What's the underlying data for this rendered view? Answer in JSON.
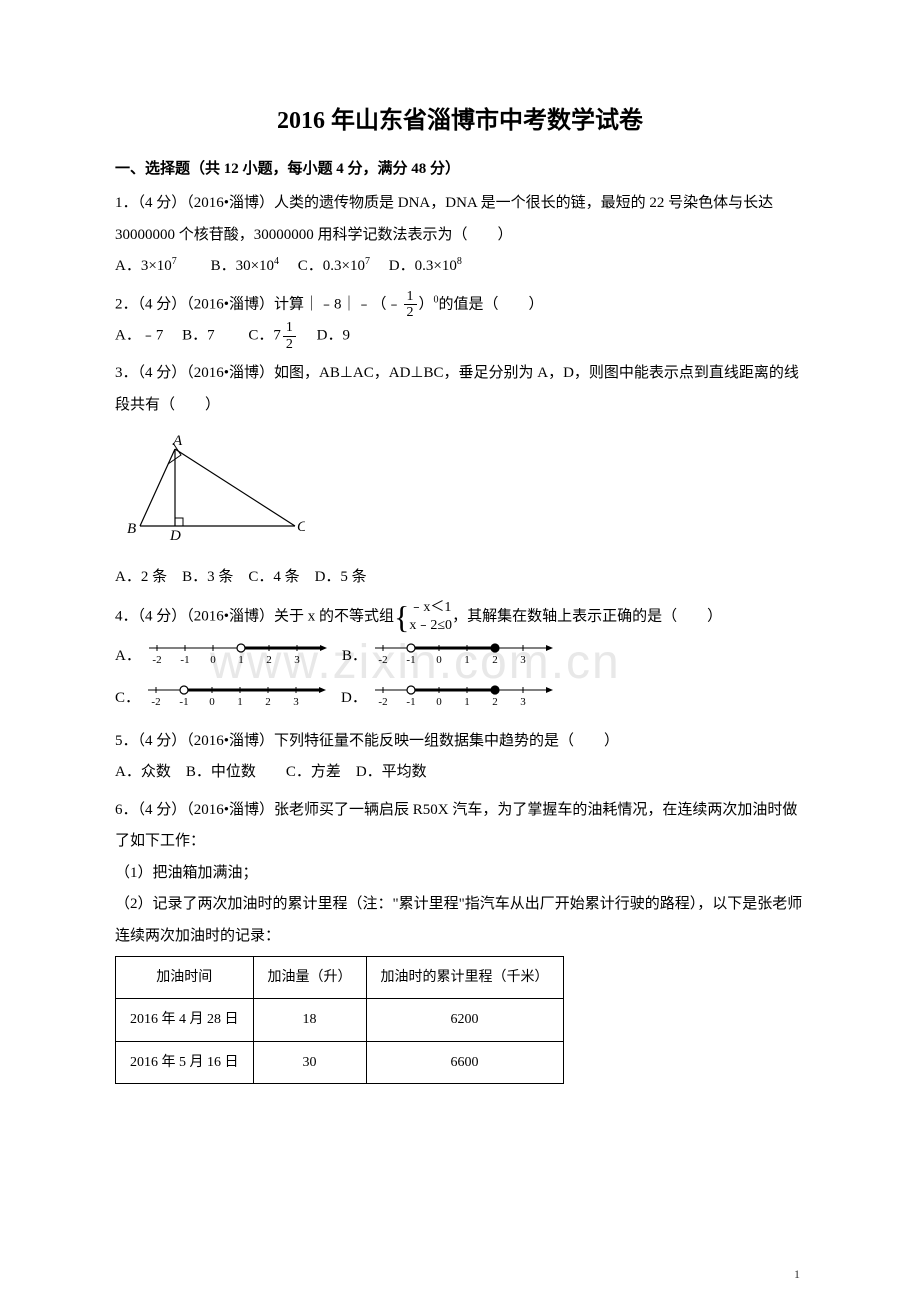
{
  "title": "2016 年山东省淄博市中考数学试卷",
  "section1_header": "一、选择题（共 12 小题，每小题 4 分，满分 48 分）",
  "q1": {
    "text": "1．（4 分）（2016•淄博）人类的遗传物质是 DNA，DNA 是一个很长的链，最短的 22 号染色体与长达 30000000 个核苷酸，30000000 用科学记数法表示为（　　）",
    "optA": "A．3×10",
    "optA_sup": "7",
    "optB": "B．30×10",
    "optB_sup": "4",
    "optC": "C．0.3×10",
    "optC_sup": "7",
    "optD": "D．0.3×10",
    "optD_sup": "8"
  },
  "q2": {
    "prefix": "2．（4 分）（2016•淄博）计算｜﹣8｜﹣（﹣",
    "frac_num": "1",
    "frac_den": "2",
    "suffix": "）",
    "sup0": "0",
    "suffix2": "的值是（　　）",
    "optA": "A．﹣7",
    "optB": "B．7",
    "optC_pre": "C．7",
    "optC_num": "1",
    "optC_den": "2",
    "optD": "D．9"
  },
  "q3": {
    "text": "3．（4 分）（2016•淄博）如图，AB⊥AC，AD⊥BC，垂足分别为 A，D，则图中能表示点到直线距离的线段共有（　　）",
    "options": "A．2 条　B．3 条　C．4 条　D．5 条",
    "figure": {
      "label_A": "A",
      "label_B": "B",
      "label_C": "C",
      "label_D": "D",
      "stroke": "#000000"
    }
  },
  "watermark_text": "www.zixin.com.cn",
  "q4": {
    "prefix": "4．（4 分）（2016•淄博）关于 x 的不等式组",
    "line1": "﹣x＜1",
    "line2": "x﹣2≤0",
    "suffix": "，其解集在数轴上表示正确的是（　　）",
    "optA": "A．",
    "optB": "B．",
    "optC": "C．",
    "optD": "D．",
    "nl": {
      "ticks": [
        "-2",
        "-1",
        "0",
        "1",
        "2",
        "3"
      ],
      "line_color": "#000000",
      "fill_color": "#000000"
    }
  },
  "q5": {
    "text": "5．（4 分）（2016•淄博）下列特征量不能反映一组数据集中趋势的是（　　）",
    "options": "A．众数　B．中位数　　C．方差　D．平均数"
  },
  "q6": {
    "text": "6．（4 分）（2016•淄博）张老师买了一辆启辰 R50X 汽车，为了掌握车的油耗情况，在连续两次加油时做了如下工作：",
    "step1": "（1）把油箱加满油；",
    "step2": "（2）记录了两次加油时的累计里程（注：\"累计里程\"指汽车从出厂开始累计行驶的路程），以下是张老师连续两次加油时的记录：",
    "table": {
      "headers": [
        "加油时间",
        "加油量（升）",
        "加油时的累计里程（千米）"
      ],
      "rows": [
        [
          "2016 年 4 月 28 日",
          "18",
          "6200"
        ],
        [
          "2016 年 5 月 16 日",
          "30",
          "6600"
        ]
      ]
    }
  },
  "page_number": "1"
}
